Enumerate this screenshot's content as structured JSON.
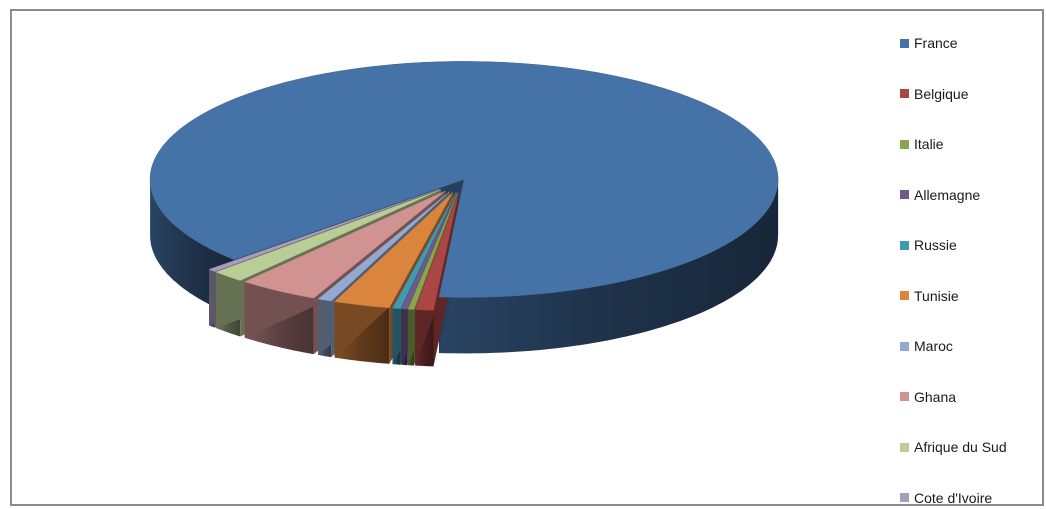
{
  "chart_data": {
    "type": "pie",
    "style": "3d-exploded",
    "legend_position": "right",
    "slices": [
      {
        "name": "France",
        "value": 85.0,
        "color": "#4572a7"
      },
      {
        "name": "Belgique",
        "value": 0.9,
        "color": "#aa4643"
      },
      {
        "name": "Italie",
        "value": 0.3,
        "color": "#89a54e"
      },
      {
        "name": "Allemagne",
        "value": 0.3,
        "color": "#71588f"
      },
      {
        "name": "Russie",
        "value": 0.4,
        "color": "#4198af"
      },
      {
        "name": "Tunisie",
        "value": 2.8,
        "color": "#db843d"
      },
      {
        "name": "Maroc",
        "value": 0.7,
        "color": "#93a9cf"
      },
      {
        "name": "Ghana",
        "value": 4.0,
        "color": "#d19392"
      },
      {
        "name": "Afrique du Sud",
        "value": 1.6,
        "color": "#b9cd96"
      },
      {
        "name": "Cote d'Ivoire",
        "value": 0.4,
        "color": "#a99bbd"
      }
    ]
  }
}
